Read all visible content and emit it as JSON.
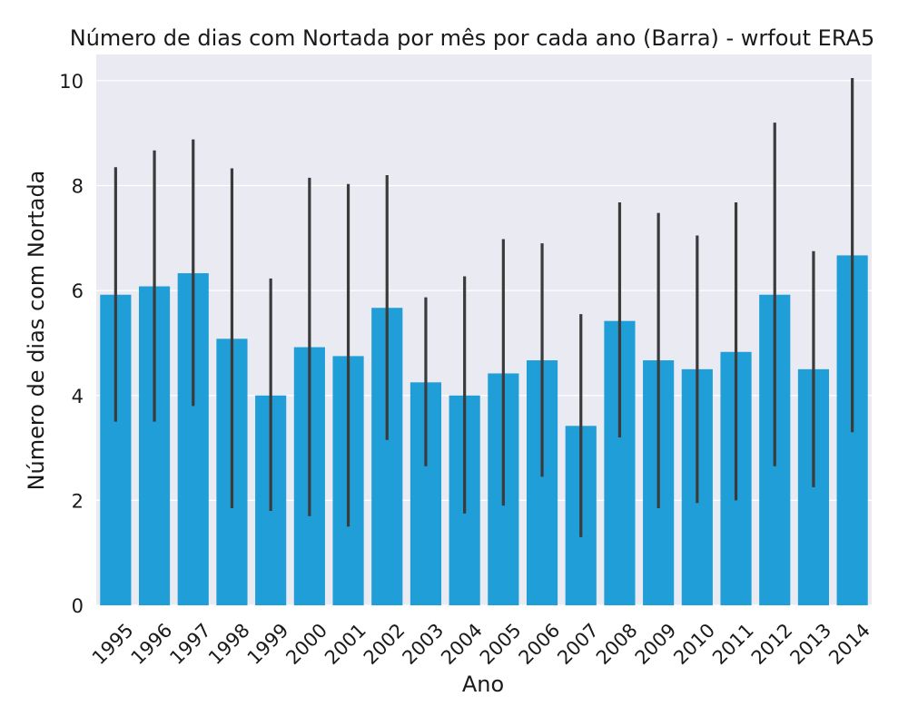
{
  "chart_data": {
    "type": "bar",
    "title": "Número de dias com Nortada por mês por cada ano (Barra) - wrfout ERA5",
    "xlabel": "Ano",
    "ylabel": "Número de dias com Nortada",
    "categories": [
      "1995",
      "1996",
      "1997",
      "1998",
      "1999",
      "2000",
      "2001",
      "2002",
      "2003",
      "2004",
      "2005",
      "2006",
      "2007",
      "2008",
      "2009",
      "2010",
      "2011",
      "2012",
      "2013",
      "2014"
    ],
    "values": [
      5.92,
      6.08,
      6.33,
      5.08,
      4.0,
      4.92,
      4.75,
      5.67,
      4.25,
      4.0,
      4.42,
      4.67,
      3.42,
      5.42,
      4.67,
      4.5,
      4.83,
      5.92,
      4.5,
      6.67
    ],
    "error_low": [
      3.5,
      3.5,
      3.8,
      1.85,
      1.8,
      1.7,
      1.5,
      3.15,
      2.65,
      1.75,
      1.9,
      2.45,
      1.3,
      3.2,
      1.85,
      1.95,
      2.0,
      2.65,
      2.25,
      3.3
    ],
    "error_high": [
      8.35,
      8.67,
      8.88,
      8.33,
      6.23,
      8.15,
      8.03,
      8.2,
      5.87,
      6.27,
      6.98,
      6.9,
      5.55,
      7.68,
      7.48,
      7.05,
      7.68,
      9.2,
      6.75,
      10.05
    ],
    "ylim": [
      0,
      10.5
    ],
    "yticks": [
      0,
      2,
      4,
      6,
      8,
      10
    ],
    "grid": true,
    "legend": "none",
    "colors": {
      "bar": "#1f9ed8",
      "errorbar": "#3b3b3b",
      "plot_bg": "#eaeaf2",
      "grid": "#ffffff"
    }
  }
}
